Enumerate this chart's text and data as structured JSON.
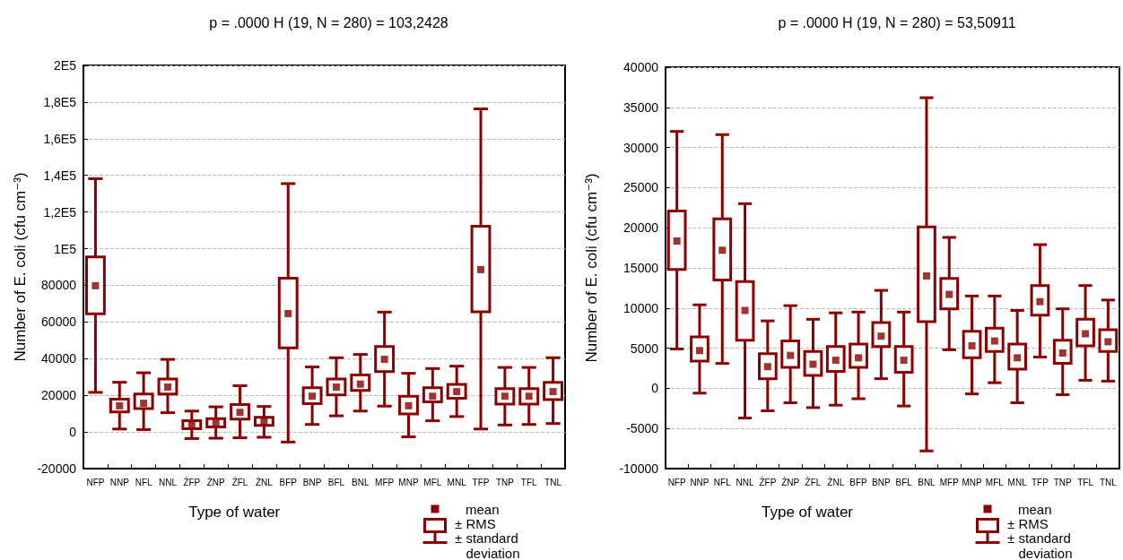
{
  "chart_data": [
    {
      "type": "box",
      "title": "p = .0000 H (19, N = 280) = 103,2428",
      "xlabel": "Type of water",
      "ylabel": "Number of E. coli (cfu cm⁻³)",
      "color": "#8b0000",
      "grid": "y",
      "marker": "square",
      "annotations": [
        "mean",
        "± RMS",
        "± standard deviation"
      ],
      "categories": [
        "NFP",
        "NNP",
        "NFL",
        "NNL",
        "ŻFP",
        "ŻNP",
        "ŻFL",
        "ŻNL",
        "BFP",
        "BNP",
        "BFL",
        "BNL",
        "MFP",
        "MNP",
        "MFL",
        "MNL",
        "TFP",
        "TNP",
        "TFL",
        "TNL"
      ],
      "ylim": [
        -20000,
        200000
      ],
      "yticks": [
        -20000,
        0,
        20000,
        40000,
        60000,
        80000,
        {
          "value": 100000,
          "label": "1E5"
        },
        {
          "value": 120000,
          "label": "1,2E5"
        },
        {
          "value": 140000,
          "label": "1,4E5"
        },
        {
          "value": 160000,
          "label": "1,6E5"
        },
        {
          "value": 180000,
          "label": "1,8E5"
        },
        {
          "value": 200000,
          "label": "2E5"
        }
      ],
      "boxes": [
        {
          "low": 21600,
          "q1": 64500,
          "q3": 95500,
          "high": 138200,
          "mean": 79800
        },
        {
          "low": 1600,
          "q1": 10900,
          "q3": 17900,
          "high": 27100,
          "mean": 14300
        },
        {
          "low": 1300,
          "q1": 12700,
          "q3": 20700,
          "high": 32300,
          "mean": 15700
        },
        {
          "low": 10500,
          "q1": 20700,
          "q3": 28900,
          "high": 39600,
          "mean": 24500
        },
        {
          "low": -3600,
          "q1": 1800,
          "q3": 6100,
          "high": 11400,
          "mean": 3600
        },
        {
          "low": -3400,
          "q1": 2700,
          "q3": 7300,
          "high": 13700,
          "mean": 4800
        },
        {
          "low": -3200,
          "q1": 7000,
          "q3": 15000,
          "high": 25200,
          "mean": 10700
        },
        {
          "low": -2900,
          "q1": 3600,
          "q3": 8000,
          "high": 13900,
          "mean": 5500
        },
        {
          "low": -5500,
          "q1": 45900,
          "q3": 83900,
          "high": 135500,
          "mean": 64600
        },
        {
          "low": 4100,
          "q1": 15500,
          "q3": 24100,
          "high": 35500,
          "mean": 19500
        },
        {
          "low": 8800,
          "q1": 20200,
          "q3": 28900,
          "high": 40500,
          "mean": 24500
        },
        {
          "low": 11400,
          "q1": 22700,
          "q3": 31100,
          "high": 42300,
          "mean": 26100
        },
        {
          "low": 14100,
          "q1": 32900,
          "q3": 46600,
          "high": 65400,
          "mean": 39600
        },
        {
          "low": -2700,
          "q1": 9800,
          "q3": 19500,
          "high": 32000,
          "mean": 14300
        },
        {
          "low": 6100,
          "q1": 16400,
          "q3": 24100,
          "high": 34600,
          "mean": 19500
        },
        {
          "low": 8400,
          "q1": 18400,
          "q3": 25900,
          "high": 35900,
          "mean": 22000
        },
        {
          "low": 1600,
          "q1": 65500,
          "q3": 112300,
          "high": 176300,
          "mean": 88600
        },
        {
          "low": 3800,
          "q1": 15200,
          "q3": 23600,
          "high": 35200,
          "mean": 19500
        },
        {
          "low": 4100,
          "q1": 15200,
          "q3": 23600,
          "high": 35200,
          "mean": 19500
        },
        {
          "low": 4600,
          "q1": 17700,
          "q3": 27100,
          "high": 40500,
          "mean": 22000
        }
      ]
    },
    {
      "type": "box",
      "title": "p = .0000 H (19, N = 280) = 53,50911",
      "xlabel": "Type of water",
      "ylabel": "Number of E. coli (cfu cm⁻³)",
      "color": "#8b0000",
      "grid": "y",
      "marker": "square",
      "annotations": [
        "mean",
        "± RMS",
        "± standard deviation"
      ],
      "categories": [
        "NFP",
        "NNP",
        "NFL",
        "NNL",
        "ŻFP",
        "ŻNP",
        "ŻFL",
        "ŻNL",
        "BFP",
        "BNP",
        "BFL",
        "BNL",
        "MFP",
        "MNP",
        "MFL",
        "MNL",
        "TFP",
        "TNP",
        "TFL",
        "TNL"
      ],
      "ylim": [
        -10000,
        40000
      ],
      "yticks": [
        -10000,
        -5000,
        0,
        5000,
        10000,
        15000,
        20000,
        25000,
        30000,
        35000,
        40000
      ],
      "boxes": [
        {
          "low": 4900,
          "q1": 14800,
          "q3": 22100,
          "high": 32000,
          "mean": 18350
        },
        {
          "low": -600,
          "q1": 3400,
          "q3": 6400,
          "high": 10400,
          "mean": 4700
        },
        {
          "low": 3100,
          "q1": 13500,
          "q3": 21100,
          "high": 31600,
          "mean": 17200
        },
        {
          "low": -3700,
          "q1": 6000,
          "q3": 13300,
          "high": 23000,
          "mean": 9700
        },
        {
          "low": -2800,
          "q1": 1200,
          "q3": 4300,
          "high": 8400,
          "mean": 2700
        },
        {
          "low": -1800,
          "q1": 2600,
          "q3": 5900,
          "high": 10300,
          "mean": 4100
        },
        {
          "low": -2400,
          "q1": 1600,
          "q3": 4600,
          "high": 8600,
          "mean": 3000
        },
        {
          "low": -2100,
          "q1": 2100,
          "q3": 5200,
          "high": 9400,
          "mean": 3500
        },
        {
          "low": -1300,
          "q1": 2600,
          "q3": 5500,
          "high": 9500,
          "mean": 3800
        },
        {
          "low": 1200,
          "q1": 5200,
          "q3": 8200,
          "high": 12200,
          "mean": 6500
        },
        {
          "low": -2200,
          "q1": 2000,
          "q3": 5200,
          "high": 9500,
          "mean": 3500
        },
        {
          "low": -7800,
          "q1": 8300,
          "q3": 20100,
          "high": 36200,
          "mean": 14000
        },
        {
          "low": 4800,
          "q1": 9900,
          "q3": 13700,
          "high": 18800,
          "mean": 11700
        },
        {
          "low": -700,
          "q1": 3800,
          "q3": 7100,
          "high": 11500,
          "mean": 5300
        },
        {
          "low": 700,
          "q1": 4600,
          "q3": 7500,
          "high": 11500,
          "mean": 5900
        },
        {
          "low": -1800,
          "q1": 2400,
          "q3": 5500,
          "high": 9700,
          "mean": 3800
        },
        {
          "low": 3900,
          "q1": 9100,
          "q3": 12800,
          "high": 17900,
          "mean": 10800
        },
        {
          "low": -800,
          "q1": 3100,
          "q3": 6000,
          "high": 9900,
          "mean": 4400
        },
        {
          "low": 1000,
          "q1": 5300,
          "q3": 8600,
          "high": 12800,
          "mean": 6800
        },
        {
          "low": 900,
          "q1": 4600,
          "q3": 7300,
          "high": 11000,
          "mean": 5800
        }
      ]
    }
  ]
}
